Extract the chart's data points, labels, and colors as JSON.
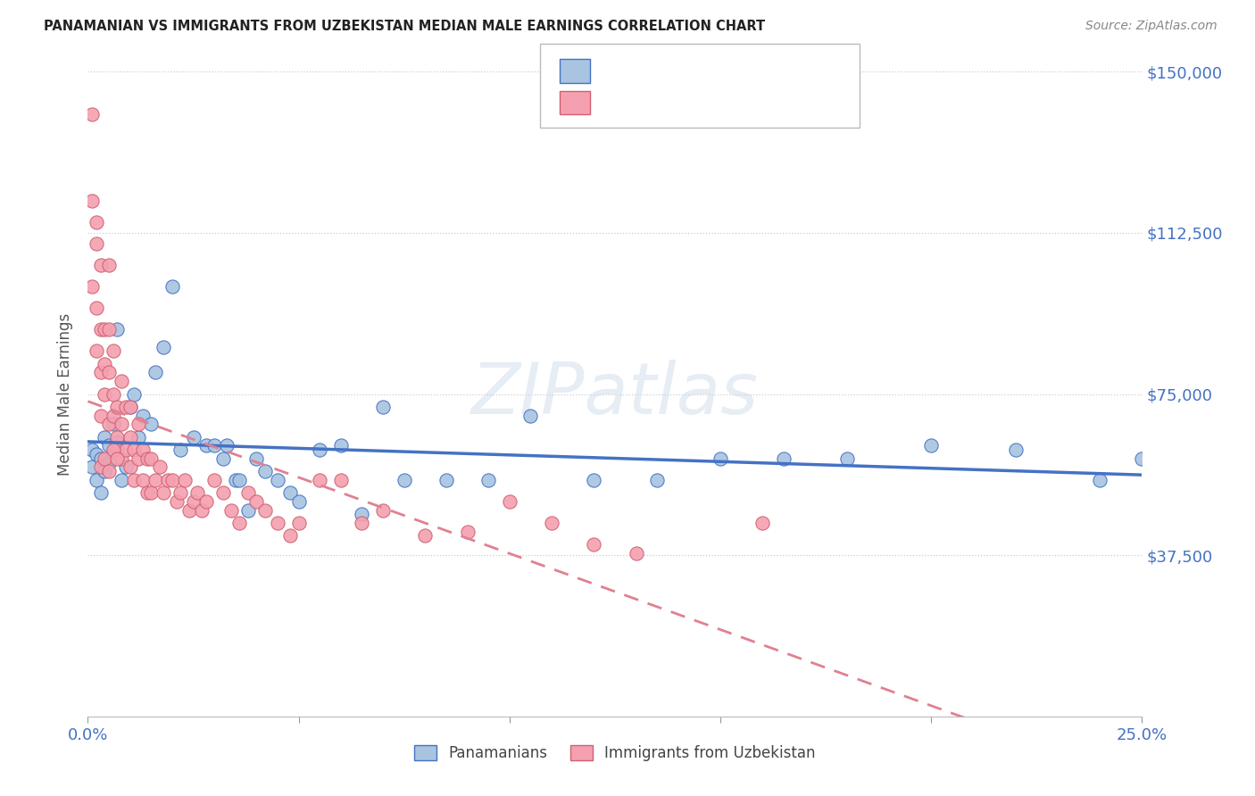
{
  "title": "PANAMANIAN VS IMMIGRANTS FROM UZBEKISTAN MEDIAN MALE EARNINGS CORRELATION CHART",
  "source": "Source: ZipAtlas.com",
  "ylabel": "Median Male Earnings",
  "xmin": 0.0,
  "xmax": 0.25,
  "ymin": 0,
  "ymax": 150000,
  "color_blue_fill": "#a8c4e0",
  "color_blue_edge": "#4472c4",
  "color_pink_fill": "#f4a0b0",
  "color_pink_edge": "#d06070",
  "color_text_blue": "#4472c4",
  "color_text_dark": "#333333",
  "color_grid": "#cccccc",
  "watermark_text": "ZIPatlas",
  "legend1_label": "Panamanians",
  "legend2_label": "Immigrants from Uzbekistan",
  "blue_x": [
    0.001,
    0.001,
    0.002,
    0.002,
    0.003,
    0.003,
    0.004,
    0.004,
    0.005,
    0.005,
    0.006,
    0.007,
    0.007,
    0.008,
    0.009,
    0.01,
    0.011,
    0.012,
    0.013,
    0.015,
    0.016,
    0.018,
    0.02,
    0.022,
    0.025,
    0.028,
    0.03,
    0.032,
    0.035,
    0.038,
    0.04,
    0.042,
    0.045,
    0.048,
    0.055,
    0.06,
    0.065,
    0.075,
    0.085,
    0.095,
    0.105,
    0.12,
    0.135,
    0.15,
    0.165,
    0.18,
    0.2,
    0.22,
    0.24,
    0.25,
    0.033,
    0.036,
    0.05,
    0.07
  ],
  "blue_y": [
    62000,
    58000,
    55000,
    61000,
    60000,
    52000,
    57000,
    65000,
    59000,
    63000,
    68000,
    90000,
    64000,
    55000,
    58000,
    72000,
    75000,
    65000,
    70000,
    68000,
    80000,
    86000,
    100000,
    62000,
    65000,
    63000,
    63000,
    60000,
    55000,
    48000,
    60000,
    57000,
    55000,
    52000,
    62000,
    63000,
    47000,
    55000,
    55000,
    55000,
    70000,
    55000,
    55000,
    60000,
    60000,
    60000,
    63000,
    62000,
    55000,
    60000,
    63000,
    55000,
    50000,
    72000
  ],
  "pink_x": [
    0.001,
    0.001,
    0.001,
    0.002,
    0.002,
    0.002,
    0.002,
    0.003,
    0.003,
    0.003,
    0.003,
    0.004,
    0.004,
    0.004,
    0.005,
    0.005,
    0.005,
    0.005,
    0.006,
    0.006,
    0.006,
    0.007,
    0.007,
    0.007,
    0.008,
    0.008,
    0.008,
    0.009,
    0.009,
    0.01,
    0.01,
    0.01,
    0.011,
    0.011,
    0.012,
    0.012,
    0.013,
    0.013,
    0.014,
    0.014,
    0.015,
    0.015,
    0.016,
    0.017,
    0.018,
    0.019,
    0.02,
    0.021,
    0.022,
    0.023,
    0.024,
    0.025,
    0.026,
    0.027,
    0.028,
    0.03,
    0.032,
    0.034,
    0.036,
    0.038,
    0.04,
    0.042,
    0.045,
    0.048,
    0.05,
    0.055,
    0.06,
    0.065,
    0.07,
    0.08,
    0.09,
    0.1,
    0.11,
    0.12,
    0.13,
    0.16,
    0.003,
    0.004,
    0.005,
    0.006,
    0.007
  ],
  "pink_y": [
    140000,
    120000,
    100000,
    115000,
    110000,
    95000,
    85000,
    90000,
    105000,
    80000,
    70000,
    90000,
    82000,
    75000,
    105000,
    90000,
    80000,
    68000,
    85000,
    75000,
    70000,
    72000,
    65000,
    62000,
    78000,
    68000,
    60000,
    72000,
    62000,
    65000,
    72000,
    58000,
    62000,
    55000,
    68000,
    60000,
    62000,
    55000,
    60000,
    52000,
    60000,
    52000,
    55000,
    58000,
    52000,
    55000,
    55000,
    50000,
    52000,
    55000,
    48000,
    50000,
    52000,
    48000,
    50000,
    55000,
    52000,
    48000,
    45000,
    52000,
    50000,
    48000,
    45000,
    42000,
    45000,
    55000,
    55000,
    45000,
    48000,
    42000,
    43000,
    50000,
    45000,
    40000,
    38000,
    45000,
    58000,
    60000,
    57000,
    62000,
    60000
  ]
}
